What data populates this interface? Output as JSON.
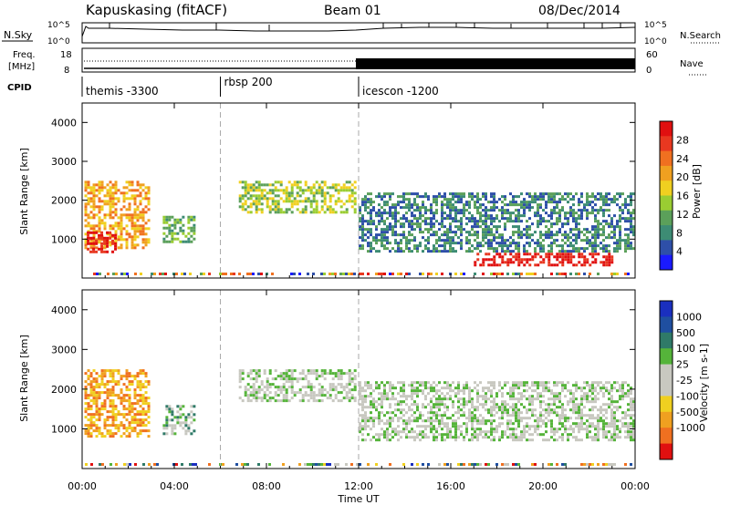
{
  "header": {
    "station": "Kapuskasing (fitACF)",
    "beam": "Beam 01",
    "date": "08/Dec/2014"
  },
  "top_panels": {
    "nsky_label": "N.Sky",
    "nsky_ticks": [
      "10^5",
      "10^0"
    ],
    "nsearch_label": "N.Search",
    "freq_label_line1": "Freq.",
    "freq_label_line2": "[MHz]",
    "freq_ticks": [
      "18",
      "8"
    ],
    "nave_label": "Nave",
    "nave_ticks": [
      "60",
      "0"
    ],
    "cpid_label": "CPID"
  },
  "cpid_segments": [
    {
      "name": "themis -3300",
      "start_hour": 0
    },
    {
      "name": "rbsp 200",
      "start_hour": 6
    },
    {
      "name": "icescon -1200",
      "start_hour": 12
    }
  ],
  "chart_data": [
    {
      "type": "heatmap",
      "ylabel": "Slant Range [km]",
      "xlabel": "Time UT",
      "x_ticks": [
        "00:00",
        "04:00",
        "08:00",
        "12:00",
        "16:00",
        "20:00",
        "00:00"
      ],
      "y_ticks": [
        1000,
        2000,
        3000,
        4000
      ],
      "colorbar_label": "Power [dB]",
      "colorbar_ticks": [
        "4",
        "8",
        "12",
        "16",
        "20",
        "24",
        "28"
      ],
      "colorbar_colors": [
        "#1a1aff",
        "#2e4fa8",
        "#3d8c74",
        "#5ba05a",
        "#9acd32",
        "#f0d020",
        "#f0a020",
        "#f07020",
        "#e83820",
        "#e01010"
      ],
      "regions": [
        {
          "t0": 0.1,
          "t1": 2.9,
          "r0": 800,
          "r1": 2500,
          "level": 6
        },
        {
          "t0": 0.2,
          "t1": 1.4,
          "r0": 700,
          "r1": 1200,
          "level": 9
        },
        {
          "t0": 3.5,
          "t1": 4.9,
          "r0": 900,
          "r1": 1600,
          "level": 3
        },
        {
          "t0": 6.8,
          "t1": 11.9,
          "r0": 1700,
          "r1": 2500,
          "level": 4
        },
        {
          "t0": 12.0,
          "t1": 24.0,
          "r0": 700,
          "r1": 2200,
          "level": 2
        },
        {
          "t0": 17.0,
          "t1": 23.0,
          "r0": 350,
          "r1": 650,
          "level": 9
        }
      ]
    },
    {
      "type": "heatmap",
      "ylabel": "Slant Range [km]",
      "xlabel": "Time UT",
      "x_ticks": [
        "00:00",
        "04:00",
        "08:00",
        "12:00",
        "16:00",
        "20:00",
        "00:00"
      ],
      "y_ticks": [
        1000,
        2000,
        3000,
        4000
      ],
      "colorbar_label": "Velocity [m s-1]",
      "colorbar_ticks": [
        "1000",
        "500",
        "100",
        "25",
        "-25",
        "-100",
        "-500",
        "-1000"
      ],
      "colorbar_colors": [
        "#1a2fbf",
        "#1f4fa0",
        "#2f7a68",
        "#55b43a",
        "#c8c8c0",
        "#c8c8c0",
        "#f0d020",
        "#f0a020",
        "#f07020",
        "#e01010"
      ],
      "regions": [
        {
          "t0": 0.1,
          "t1": 2.9,
          "r0": 800,
          "r1": 2500,
          "level": 7
        },
        {
          "t0": 3.5,
          "t1": 4.9,
          "r0": 900,
          "r1": 1600,
          "level": 3
        },
        {
          "t0": 6.8,
          "t1": 11.9,
          "r0": 1700,
          "r1": 2500,
          "level": 4
        },
        {
          "t0": 12.0,
          "t1": 24.0,
          "r0": 700,
          "r1": 2200,
          "level": 4
        }
      ]
    }
  ]
}
